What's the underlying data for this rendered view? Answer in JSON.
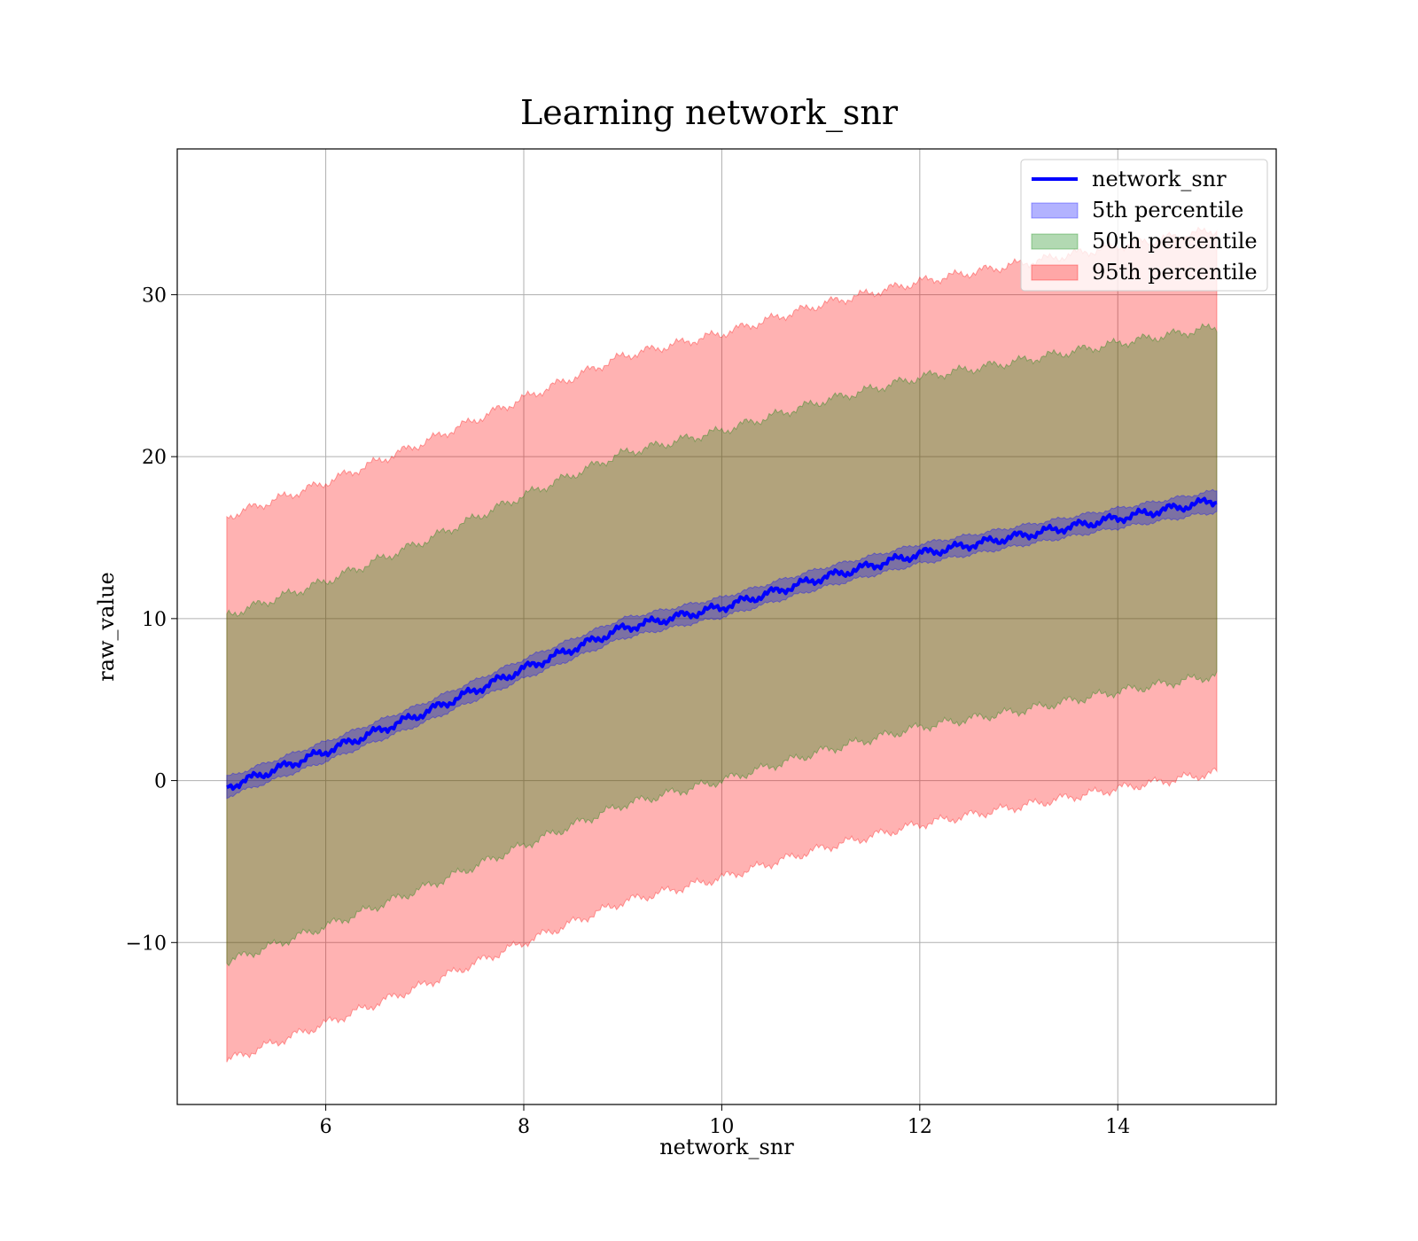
{
  "chart_data": {
    "type": "line",
    "title": "Learning network_snr",
    "xlabel": "network_snr",
    "ylabel": "raw_value",
    "xlim": [
      4.5,
      15.6
    ],
    "ylim": [
      -20,
      39
    ],
    "xticks": [
      6,
      8,
      10,
      12,
      14
    ],
    "xtick_labels": [
      "6",
      "8",
      "10",
      "12",
      "14"
    ],
    "yticks": [
      -10,
      0,
      10,
      20,
      30
    ],
    "ytick_labels": [
      "−10",
      "0",
      "10",
      "20",
      "30"
    ],
    "grid": true,
    "legend_position": "top-right",
    "x": [
      5,
      6,
      7,
      8,
      9,
      10,
      11,
      12,
      13,
      14,
      15
    ],
    "series": [
      {
        "name": "network_snr",
        "kind": "line",
        "color": "#0000ff",
        "values": [
          -0.4,
          1.8,
          4.2,
          6.9,
          9.4,
          10.7,
          12.5,
          14.0,
          15.1,
          16.2,
          17.3
        ]
      },
      {
        "name": "5th percentile",
        "kind": "band",
        "color": "#0000ff",
        "lower": [
          -1.0,
          1.2,
          3.6,
          6.3,
          8.8,
          10.1,
          11.9,
          13.4,
          14.5,
          15.6,
          16.6
        ],
        "upper": [
          0.2,
          2.4,
          4.8,
          7.5,
          10.0,
          11.3,
          13.1,
          14.6,
          15.7,
          16.8,
          17.9
        ]
      },
      {
        "name": "50th percentile",
        "kind": "band",
        "color": "#008000",
        "lower": [
          -11.2,
          -9.0,
          -6.6,
          -4.0,
          -1.5,
          0.0,
          1.8,
          3.3,
          4.3,
          5.5,
          6.5
        ],
        "upper": [
          10.2,
          12.3,
          14.8,
          17.6,
          20.2,
          21.6,
          23.4,
          24.9,
          25.9,
          27.0,
          28.0
        ]
      },
      {
        "name": "95th percentile",
        "kind": "band",
        "color": "#ff0000",
        "lower": [
          -17.3,
          -15.0,
          -12.6,
          -10.0,
          -7.5,
          -6.0,
          -4.2,
          -2.7,
          -1.6,
          -0.5,
          0.5
        ],
        "upper": [
          16.3,
          18.4,
          20.9,
          23.6,
          26.2,
          27.6,
          29.4,
          30.8,
          31.9,
          33.0,
          34.0
        ]
      }
    ]
  }
}
